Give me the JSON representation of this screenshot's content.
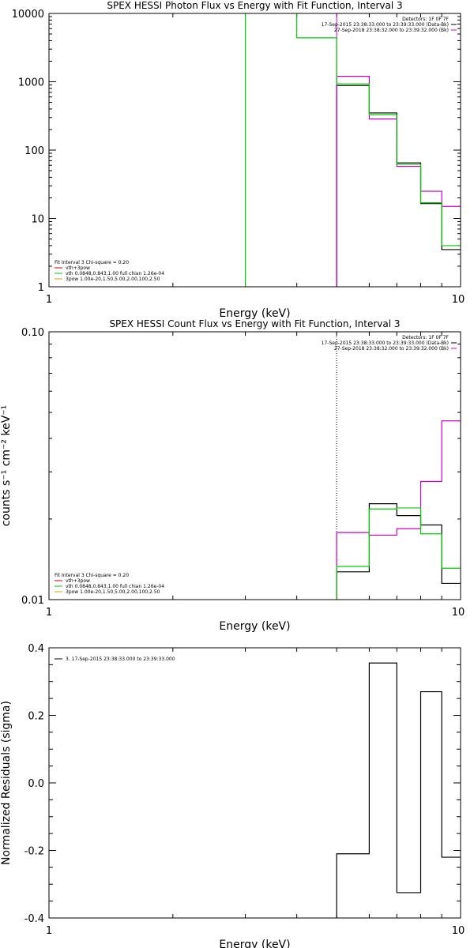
{
  "chart_data": [
    {
      "type": "step",
      "title": "SPEX HESSI Photon Flux vs Energy with Fit Function, Interval 3",
      "xlabel": "Energy (keV)",
      "ylabel": "",
      "xscale": "log",
      "yscale": "log",
      "xlim": [
        1,
        10
      ],
      "ylim": [
        1,
        10000
      ],
      "xticks": [
        "1",
        "10"
      ],
      "yticks": [
        "1",
        "10",
        "100",
        "1000",
        "10000"
      ],
      "x_edges": [
        3,
        4,
        5,
        6,
        7,
        8,
        9,
        10
      ],
      "info": [
        {
          "text": "Detectors: 1F 0F 7F",
          "color": "#000000"
        },
        {
          "text": "17-Sep-2015 23:38:33.000 to 23:39:33.000 (Data-Bk)",
          "color": "#000000"
        },
        {
          "text": "27-Sep-2018 23:38:32.000 to 23:39:32.000 (Bk)",
          "color": "#cc00cc"
        }
      ],
      "legend": [
        {
          "text": "Fit Interval 3   Chi-square = 0.20",
          "color": "#000000"
        },
        {
          "text": "vth+3pow",
          "color": "#cc0000"
        },
        {
          "text": "vth 0.0848,0.843,1.00  full chian 1.26e-04",
          "color": "#00cc00"
        },
        {
          "text": "3pow 1.00e-20,1.50,5.00,2.00,100,2.50",
          "color": "#d4a000"
        }
      ],
      "series": [
        {
          "color": "#000000",
          "values": [
            null,
            null,
            880,
            350,
            65,
            16.5,
            3.5
          ]
        },
        {
          "color": "#cc00cc",
          "values": [
            null,
            null,
            1200,
            285,
            58,
            25,
            15
          ]
        },
        {
          "color": "#00cc00",
          "values": [
            100000,
            4400,
            930,
            330,
            62,
            17,
            4
          ]
        }
      ],
      "vlines": [
        {
          "x": 5,
          "style": "solid",
          "color": "#cc00cc"
        }
      ]
    },
    {
      "type": "step",
      "title": "SPEX HESSI Count Flux vs Energy with Fit Function, Interval 3",
      "xlabel": "Energy (keV)",
      "ylabel": "counts s⁻¹ cm⁻² keV⁻¹",
      "xscale": "log",
      "yscale": "log",
      "xlim": [
        1,
        10
      ],
      "ylim": [
        0.01,
        0.1
      ],
      "xticks": [
        "1",
        "10"
      ],
      "yticks": [
        "0.01",
        "0.10"
      ],
      "x_edges": [
        5,
        6,
        7,
        8,
        9,
        10
      ],
      "info": [
        {
          "text": "Detectors: 1F 0F 7F",
          "color": "#000000"
        },
        {
          "text": "17-Sep-2015 23:38:33.000 to 23:39:33.000 (Data-Bk)",
          "color": "#000000"
        },
        {
          "text": "27-Sep-2018 23:38:32.000 to 23:39:32.000 (Bk)",
          "color": "#cc00cc"
        }
      ],
      "legend": [
        {
          "text": "Fit Interval 3   Chi-square = 0.20",
          "color": "#000000"
        },
        {
          "text": "vth+3pow",
          "color": "#cc0000"
        },
        {
          "text": "vth 0.0848,0.843,1.00  full chian 1.26e-04",
          "color": "#00cc00"
        },
        {
          "text": "3pow 1.00e-20,1.50,5.00,2.00,100,2.50",
          "color": "#d4a000"
        }
      ],
      "series": [
        {
          "color": "#000000",
          "values": [
            0.0127,
            0.0228,
            0.0206,
            0.019,
            0.0115
          ]
        },
        {
          "color": "#cc00cc",
          "values": [
            0.0178,
            0.0174,
            0.0184,
            0.0276,
            0.0465
          ]
        },
        {
          "color": "#00cc00",
          "values": [
            0.0133,
            0.0218,
            0.022,
            0.0176,
            0.0131
          ]
        }
      ],
      "vlines": [
        {
          "x": 5,
          "style": "dotted",
          "color": "#000000"
        }
      ]
    },
    {
      "type": "step",
      "title": "",
      "xlabel": "Energy (keV)",
      "ylabel": "Normalized Residuals (sigma)",
      "xscale": "log",
      "yscale": "linear",
      "xlim": [
        1,
        10
      ],
      "ylim": [
        -0.4,
        0.4
      ],
      "xticks": [
        "1",
        "10"
      ],
      "yticks": [
        "-0.4",
        "-0.2",
        "0.0",
        "0.2",
        "0.4"
      ],
      "x_edges": [
        5,
        6,
        7,
        8,
        9,
        10
      ],
      "info": [],
      "legend": [
        {
          "text": "3. 17-Sep-2015 23:38:33.000 to 23:39:33.000",
          "color": "#000000"
        }
      ],
      "series": [
        {
          "color": "#000000",
          "values": [
            -0.21,
            0.355,
            -0.325,
            0.27,
            -0.22
          ]
        }
      ],
      "vlines": []
    }
  ]
}
